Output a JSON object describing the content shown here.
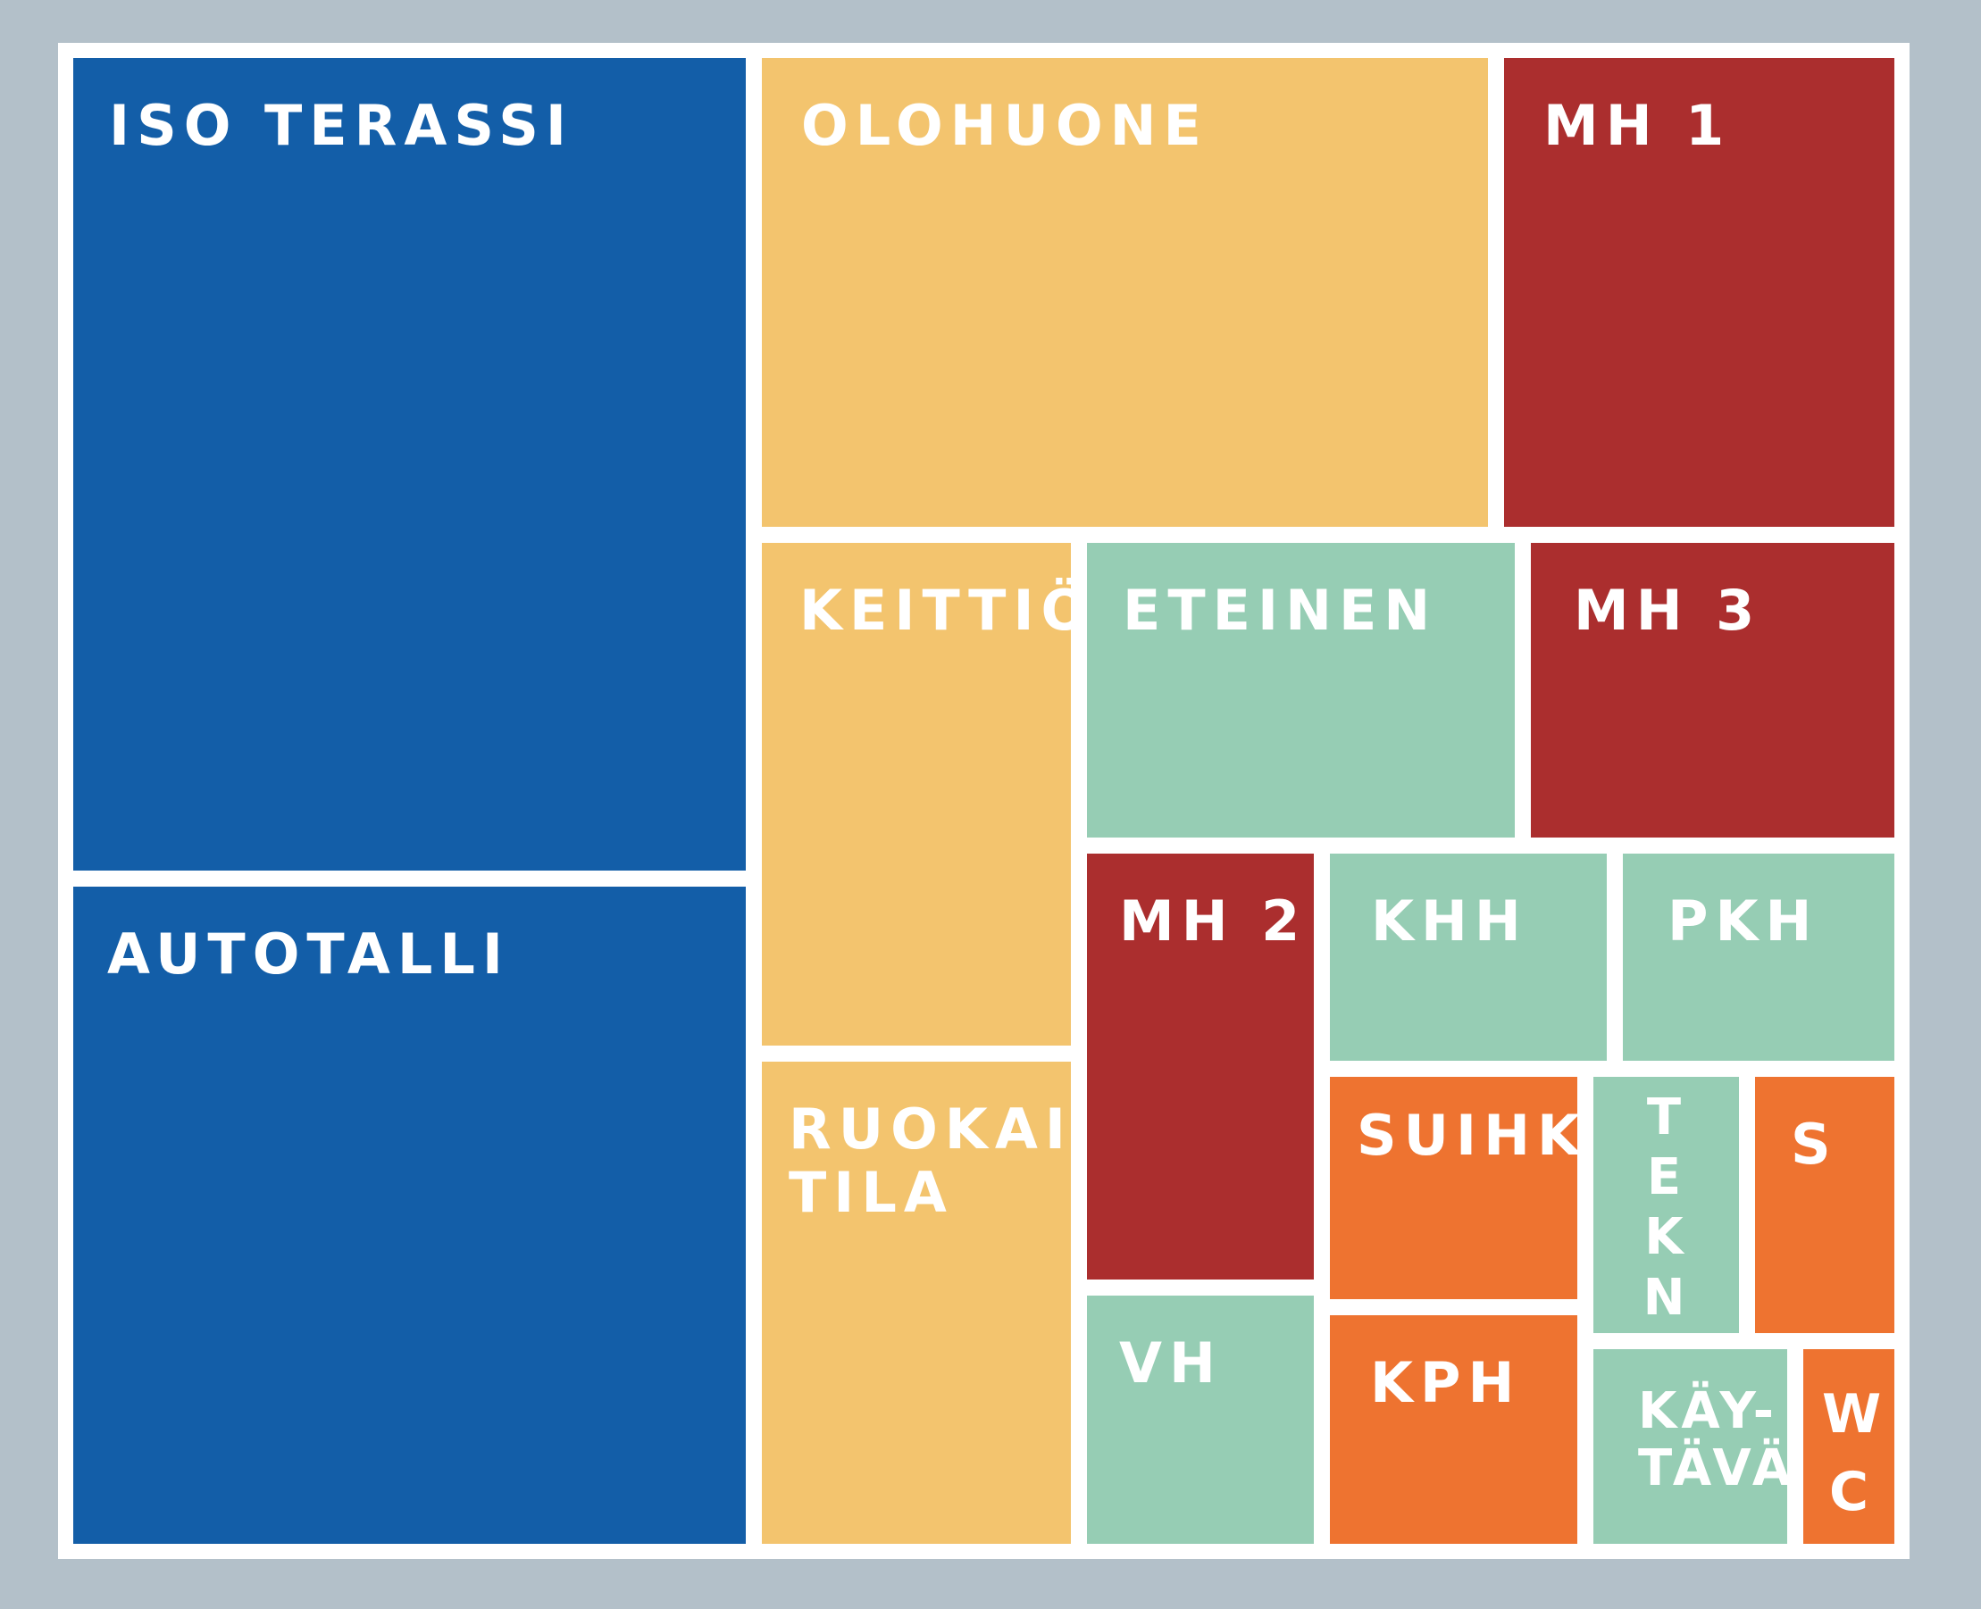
{
  "colors": {
    "background": "#b3c0c9",
    "frame": "#ffffff",
    "blue": "#135ea8",
    "yellow": "#f3c46e",
    "red": "#ab2e2e",
    "teal": "#96cdb4",
    "orange": "#ee7330",
    "text": "#ffffff"
  },
  "rooms": {
    "iso_terassi": "ISO TERASSI",
    "autotalli": "AUTOTALLI",
    "olohuone": "OLOHUONE",
    "mh1": "MH 1",
    "keittio": "KEITTIÖ",
    "eteinen": "ETEINEN",
    "mh3": "MH 3",
    "ruokailutila": "RUOKAILU-\nTILA",
    "mh2": "MH 2",
    "khh": "KHH",
    "pkh": "PKH",
    "vh": "VH",
    "suihku": "SUIHKU",
    "tekn": "TEKN",
    "s": "S",
    "kph": "KPH",
    "kaytava": "KÄY-\nTÄVÄ",
    "wc": "WC"
  }
}
